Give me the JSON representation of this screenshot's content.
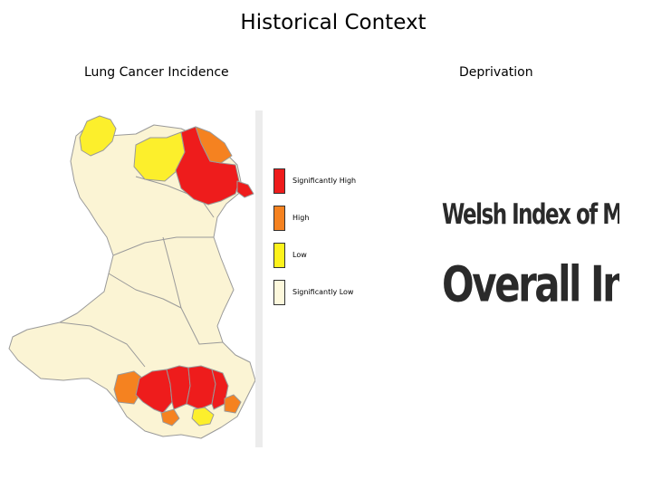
{
  "title": "Historical Context",
  "subtitles": {
    "left": "Lung Cancer Incidence",
    "right": "Deprivation"
  },
  "legend": [
    {
      "label": "Significantly High",
      "color": "#ee1c1c"
    },
    {
      "label": "High",
      "color": "#f58220"
    },
    {
      "label": "Low",
      "color": "#fdf21c"
    },
    {
      "label": "Significantly Low",
      "color": "#fdf8dc"
    }
  ],
  "map_colors": {
    "significantly_high": "#ee1c1c",
    "high": "#f58220",
    "low": "#fcef2c",
    "significantly_low": "#fbf4d4",
    "border": "#9a9a9a"
  },
  "deprivation_image": {
    "line1": "Welsh Index of Multipl",
    "line2": "Overall Index"
  }
}
